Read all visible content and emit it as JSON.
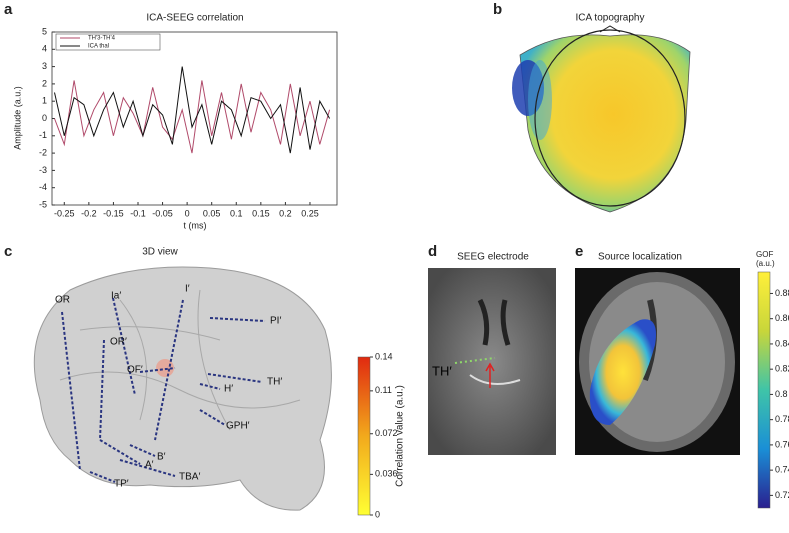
{
  "panels": {
    "a": "a",
    "b": "b",
    "c": "c",
    "d": "d",
    "e": "e"
  },
  "chart_data": {
    "type": "line",
    "title": "ICA-SEEG correlation",
    "x_label": "t (ms)",
    "y_label": "Amplitude (a.u.)",
    "x": [
      -0.27,
      -0.25,
      -0.23,
      -0.21,
      -0.19,
      -0.17,
      -0.15,
      -0.13,
      -0.11,
      -0.09,
      -0.07,
      -0.05,
      -0.03,
      -0.01,
      0.01,
      0.03,
      0.05,
      0.07,
      0.09,
      0.11,
      0.13,
      0.15,
      0.17,
      0.19,
      0.21,
      0.23,
      0.25,
      0.27,
      0.29
    ],
    "series": [
      {
        "name": "TH'3-TH'4",
        "color": "#b04a6a",
        "values": [
          0,
          -1.5,
          2.2,
          -1,
          0.5,
          1.5,
          -1,
          1.2,
          0.3,
          -1,
          1.8,
          -0.5,
          -1.2,
          0.5,
          -2,
          2.2,
          -1,
          1.5,
          -1.2,
          2,
          -0.8,
          1.5,
          0.5,
          -1.5,
          2,
          -1,
          1,
          -1.5,
          0.5
        ]
      },
      {
        "name": "ICA thal",
        "color": "#111111",
        "values": [
          1.5,
          -1,
          1.2,
          0.8,
          -1,
          0.5,
          1.5,
          -0.5,
          1,
          -1,
          0.8,
          0.2,
          -1.5,
          3,
          -0.5,
          0.8,
          -1.5,
          1,
          0.5,
          -1,
          1.2,
          1,
          0,
          0.8,
          -2,
          1.8,
          -1.8,
          1,
          0
        ]
      }
    ],
    "xlim": [
      -0.275,
      0.305
    ],
    "xticks": [
      -0.25,
      -0.2,
      -0.15,
      -0.1,
      -0.05,
      0,
      0.05,
      0.1,
      0.15,
      0.2,
      0.25
    ],
    "ylim": [
      -5,
      5
    ],
    "yticks": [
      -5,
      -4,
      -3,
      -2,
      -1,
      0,
      1,
      2,
      3,
      4,
      5
    ],
    "legend": "upper left"
  },
  "topography": {
    "title": "ICA topography"
  },
  "view3d": {
    "title": "3D view",
    "electrodes": [
      "OR",
      "Ia′",
      "I′",
      "OR′",
      "PI′",
      "OF′",
      "TH′",
      "H′",
      "GPH′",
      "A′",
      "B′",
      "TBA′",
      "TP′"
    ]
  },
  "seeg": {
    "title": "SEEG electrode",
    "label": "TH′"
  },
  "source": {
    "title": "Source localization"
  },
  "colorbars": [
    {
      "label": "Correlation value (a.u.)",
      "lim": [
        0,
        0.14
      ],
      "ticks": [
        0,
        0.036,
        0.072,
        0.11,
        0.14
      ],
      "colors": [
        "#ffff33",
        "#f2a91c",
        "#e02a10"
      ]
    },
    {
      "label": "GOF (a.u.)",
      "lim": [
        0.71,
        0.897
      ],
      "ticks": [
        0.72,
        0.74,
        0.76,
        0.78,
        0.8,
        0.82,
        0.84,
        0.86,
        0.88
      ],
      "colors": [
        "#2a1f8f",
        "#1a8fd6",
        "#3fc4a8",
        "#c8d63a",
        "#ffef3a"
      ]
    }
  ]
}
